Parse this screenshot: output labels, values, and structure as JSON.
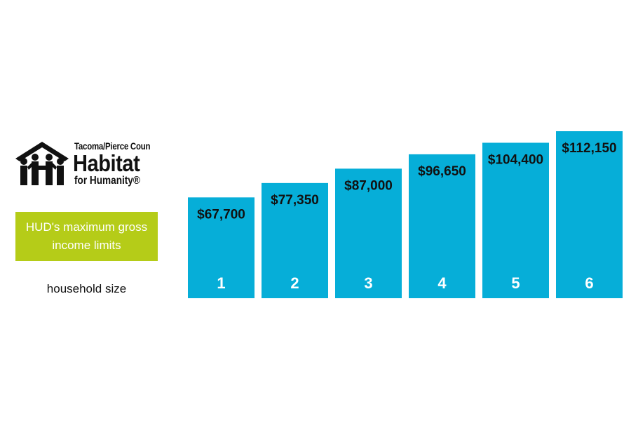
{
  "logo": {
    "org_line": "Tacoma/Pierce Coun",
    "habitat": "Habitat",
    "humanity": "for Humanity®",
    "icon": "habitat-house-people-icon",
    "color": "#111111"
  },
  "caption": {
    "text": "HUD's maximum gross income limits",
    "background": "#b5cc18"
  },
  "household_label": "household size",
  "chart_data": {
    "type": "bar",
    "categories": [
      "1",
      "2",
      "3",
      "4",
      "5",
      "6"
    ],
    "values": [
      67700,
      77350,
      87000,
      96650,
      104400,
      112150
    ],
    "value_labels": [
      "$67,700",
      "$77,350",
      "$87,000",
      "$96,650",
      "$104,400",
      "$112,150"
    ],
    "bar_color": "#06aed8",
    "grid": false
  }
}
